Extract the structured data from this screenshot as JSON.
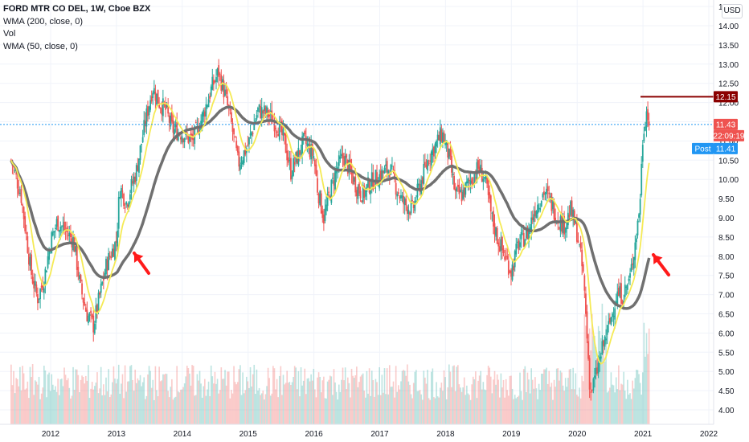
{
  "header": {
    "symbol": "FORD MTR CO DEL, 1W, Cboe BZX",
    "indicators": [
      "WMA (200, close, 0)",
      "Vol",
      "WMA (50, close, 0)"
    ],
    "currency_button": "USD"
  },
  "colors": {
    "up": "#26a69a",
    "down": "#ef5350",
    "wma200": "#707070",
    "wma50": "#f5ea55",
    "annotation_line": "#8b0000",
    "arrow": "#ff1a1a",
    "last_price_label": "#ef5350",
    "post_label": "#2196f3"
  },
  "price_labels": {
    "resistance": "12.15",
    "last": "11.43",
    "countdown": "22:09:19",
    "post_tag": "Post",
    "post_value": "11.41"
  },
  "chart_data": {
    "type": "candlestick",
    "x_axis": {
      "ticks": [
        "2012",
        "2013",
        "2014",
        "2015",
        "2016",
        "2017",
        "2018",
        "2019",
        "2020",
        "2021",
        "2022"
      ]
    },
    "y_axis": {
      "range": [
        3.7,
        14.4
      ],
      "ticks": [
        "4.00",
        "4.50",
        "5.00",
        "5.50",
        "6.00",
        "6.50",
        "7.00",
        "7.50",
        "8.00",
        "8.50",
        "9.00",
        "9.50",
        "10.00",
        "10.50",
        "11.00",
        "11.50",
        "12.00",
        "12.50",
        "13.00",
        "13.50",
        "14.00",
        "14.50"
      ]
    },
    "approx_closes": [
      [
        2011.4,
        10.5
      ],
      [
        2011.55,
        9.6
      ],
      [
        2011.7,
        7.6
      ],
      [
        2011.8,
        6.9
      ],
      [
        2011.9,
        7.4
      ],
      [
        2012.0,
        8.4
      ],
      [
        2012.1,
        8.9
      ],
      [
        2012.25,
        8.6
      ],
      [
        2012.35,
        8.4
      ],
      [
        2012.45,
        7.2
      ],
      [
        2012.55,
        6.5
      ],
      [
        2012.65,
        6.2
      ],
      [
        2012.75,
        7.0
      ],
      [
        2012.85,
        7.8
      ],
      [
        2013.0,
        8.4
      ],
      [
        2013.05,
        9.8
      ],
      [
        2013.15,
        9.4
      ],
      [
        2013.3,
        10.2
      ],
      [
        2013.45,
        11.6
      ],
      [
        2013.55,
        12.4
      ],
      [
        2013.65,
        12.0
      ],
      [
        2013.75,
        11.8
      ],
      [
        2013.85,
        11.3
      ],
      [
        2014.0,
        11.2
      ],
      [
        2014.15,
        11.0
      ],
      [
        2014.3,
        11.6
      ],
      [
        2014.45,
        12.4
      ],
      [
        2014.55,
        12.8
      ],
      [
        2014.65,
        12.2
      ],
      [
        2014.75,
        11.4
      ],
      [
        2014.85,
        10.4
      ],
      [
        2015.0,
        10.9
      ],
      [
        2015.15,
        11.8
      ],
      [
        2015.3,
        11.7
      ],
      [
        2015.45,
        11.4
      ],
      [
        2015.55,
        11.0
      ],
      [
        2015.65,
        10.2
      ],
      [
        2015.75,
        10.6
      ],
      [
        2015.85,
        11.0
      ],
      [
        2016.0,
        10.6
      ],
      [
        2016.05,
        9.8
      ],
      [
        2016.15,
        9.0
      ],
      [
        2016.25,
        9.7
      ],
      [
        2016.35,
        10.3
      ],
      [
        2016.45,
        10.6
      ],
      [
        2016.55,
        10.2
      ],
      [
        2016.65,
        9.8
      ],
      [
        2016.75,
        9.6
      ],
      [
        2016.85,
        9.9
      ],
      [
        2017.0,
        10.1
      ],
      [
        2017.15,
        10.3
      ],
      [
        2017.25,
        9.8
      ],
      [
        2017.35,
        9.4
      ],
      [
        2017.5,
        9.2
      ],
      [
        2017.6,
        9.8
      ],
      [
        2017.75,
        10.6
      ],
      [
        2017.85,
        10.9
      ],
      [
        2017.95,
        11.2
      ],
      [
        2018.05,
        10.6
      ],
      [
        2018.15,
        9.6
      ],
      [
        2018.25,
        9.6
      ],
      [
        2018.35,
        9.9
      ],
      [
        2018.5,
        10.3
      ],
      [
        2018.6,
        10.0
      ],
      [
        2018.7,
        9.0
      ],
      [
        2018.8,
        8.4
      ],
      [
        2018.9,
        8.0
      ],
      [
        2019.0,
        7.6
      ],
      [
        2019.1,
        8.3
      ],
      [
        2019.25,
        8.6
      ],
      [
        2019.35,
        9.2
      ],
      [
        2019.5,
        9.7
      ],
      [
        2019.6,
        9.4
      ],
      [
        2019.7,
        9.0
      ],
      [
        2019.8,
        8.8
      ],
      [
        2019.9,
        9.2
      ],
      [
        2020.0,
        8.6
      ],
      [
        2020.1,
        7.4
      ],
      [
        2020.2,
        4.4
      ],
      [
        2020.3,
        5.0
      ],
      [
        2020.4,
        5.7
      ],
      [
        2020.5,
        6.3
      ],
      [
        2020.6,
        7.0
      ],
      [
        2020.7,
        7.0
      ],
      [
        2020.8,
        7.4
      ],
      [
        2020.9,
        8.6
      ],
      [
        2020.95,
        9.3
      ],
      [
        2021.0,
        11.2
      ],
      [
        2021.05,
        11.8
      ],
      [
        2021.1,
        11.43
      ]
    ],
    "annotations": [
      "horizontal line at 12.15",
      "arrow at 2013.3",
      "arrow at 2021.2"
    ]
  }
}
